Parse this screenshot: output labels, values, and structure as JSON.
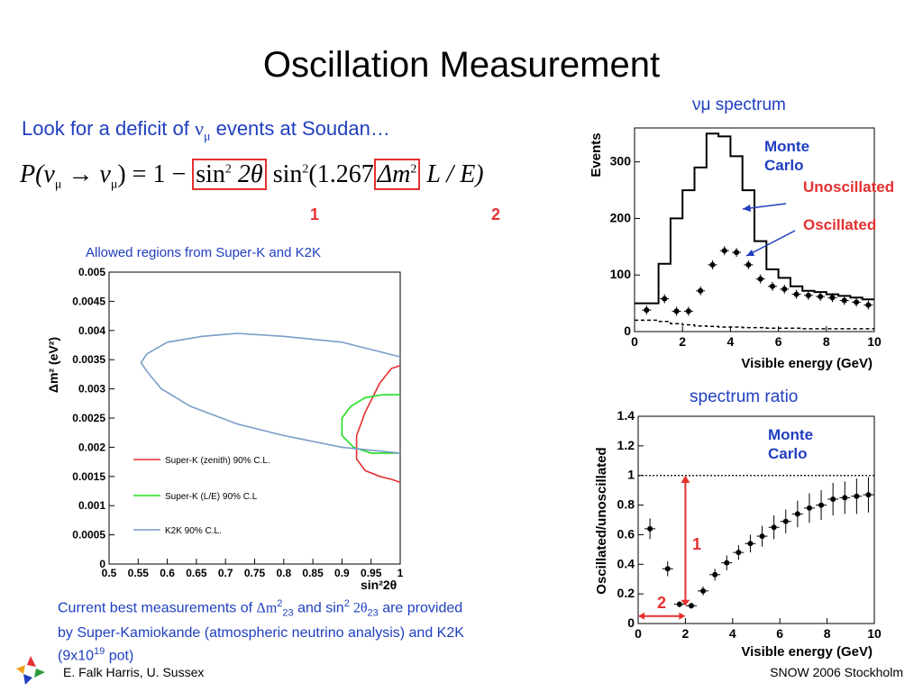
{
  "title": "Oscillation Measurement",
  "intro": {
    "prefix": "Look for a deficit of ",
    "nu": "ν",
    "mu": "μ",
    "suffix": " events at Soudan…"
  },
  "formula": {
    "lhs": "P(ν",
    "sub1": "μ",
    "arrow": " → ν",
    "sub2": "μ",
    "eq": ") = 1 − ",
    "box1": "sin",
    "box1_sup": "2",
    "box1_rest": " 2θ",
    "mid": " sin",
    "mid_sup": "2",
    "mid_rest": "(1.267",
    "box2": "Δm",
    "box2_sup": "2",
    "tail": " L / E)",
    "mark1": "1",
    "mark2": "2"
  },
  "allowed_caption": "Allowed regions from Super-K and K2K",
  "bottom_text": {
    "l1a": "Current best measurements of ",
    "dm": "Δm",
    "sup2": "2",
    "sub23": "23",
    "l1b": " and sin",
    "sup2b": "2",
    "l1c": " 2θ",
    "sub23b": "23",
    "l1d": " are provided",
    "l2": "by Super-Kamiokande (atmospheric neutrino analysis) and K2K",
    "l3a": "(9x10",
    "sup19": "19",
    "l3b": " pot)"
  },
  "footer": {
    "left": "E. Falk Harris, U. Sussex",
    "right": "SNOW 2006 Stockholm"
  },
  "colors": {
    "accent_blue": "#1f3fbf",
    "red": "#e53030",
    "green": "#22dd22",
    "k2k_blue": "#7a9cc8"
  },
  "chart_data": [
    {
      "type": "line",
      "xlabel": "sin²2θ",
      "ylabel": "Δm² (eV²)",
      "xlim": [
        0.5,
        1.0
      ],
      "ylim": [
        0,
        0.005
      ],
      "xticks": [
        "0.5",
        "0.55",
        "0.6",
        "0.65",
        "0.7",
        "0.75",
        "0.8",
        "0.85",
        "0.9",
        "0.95",
        "1"
      ],
      "yticks": [
        "0",
        "0.0005",
        "0.001",
        "0.0015",
        "0.002",
        "0.0025",
        "0.003",
        "0.0035",
        "0.004",
        "0.0045",
        "0.005"
      ],
      "legend": [
        "Super-K (zenith) 90% C.L.",
        "Super-K (L/E) 90% C.L",
        "K2K 90% C.L."
      ],
      "series": [
        {
          "name": "Super-K (zenith) 90% C.L.",
          "color": "#e53030",
          "x": [
            1.0,
            0.985,
            0.965,
            0.94,
            0.925,
            0.925,
            0.94,
            0.965,
            0.985,
            1.0
          ],
          "y": [
            0.0034,
            0.00335,
            0.0031,
            0.0026,
            0.0022,
            0.0018,
            0.0016,
            0.0015,
            0.00145,
            0.0014
          ]
        },
        {
          "name": "Super-K (L/E) 90% C.L",
          "color": "#22dd22",
          "x": [
            1.0,
            0.97,
            0.94,
            0.915,
            0.9,
            0.9,
            0.92,
            0.95,
            0.98,
            1.0
          ],
          "y": [
            0.0029,
            0.0029,
            0.00285,
            0.0027,
            0.0025,
            0.0022,
            0.002,
            0.0019,
            0.0019,
            0.0019
          ]
        },
        {
          "name": "K2K 90% C.L.",
          "color": "#7a9cc8",
          "x": [
            1.0,
            0.9,
            0.8,
            0.72,
            0.66,
            0.6,
            0.565,
            0.555,
            0.565,
            0.59,
            0.64,
            0.72,
            0.8,
            0.9,
            1.0
          ],
          "y": [
            0.00355,
            0.0038,
            0.0039,
            0.00395,
            0.0039,
            0.0038,
            0.0036,
            0.00345,
            0.0033,
            0.003,
            0.0027,
            0.0024,
            0.0022,
            0.002,
            0.0019
          ]
        }
      ]
    },
    {
      "type": "line",
      "title": "νμ spectrum",
      "xlabel": "Visible energy (GeV)",
      "ylabel": "Events",
      "xlim": [
        0,
        10
      ],
      "ylim": [
        0,
        360
      ],
      "xticks": [
        "0",
        "2",
        "4",
        "6",
        "8",
        "10"
      ],
      "yticks": [
        "0",
        "100",
        "200",
        "300"
      ],
      "series": [
        {
          "name": "Unoscillated",
          "type": "step",
          "x": [
            0,
            0.5,
            1,
            1.5,
            2,
            2.5,
            3,
            3.5,
            4,
            4.5,
            5,
            5.5,
            6,
            6.5,
            7,
            7.5,
            8,
            8.5,
            9,
            9.5,
            10
          ],
          "y": [
            50,
            50,
            120,
            200,
            250,
            290,
            350,
            345,
            310,
            250,
            160,
            110,
            95,
            80,
            72,
            70,
            66,
            63,
            60,
            57,
            55
          ]
        },
        {
          "name": "dashed",
          "type": "step",
          "x": [
            0,
            0.5,
            1,
            1.5,
            2,
            2.5,
            3,
            3.5,
            4,
            4.5,
            5,
            5.5,
            6,
            6.5,
            7,
            7.5,
            8,
            8.5,
            9,
            9.5,
            10
          ],
          "y": [
            20,
            20,
            18,
            14,
            12,
            10,
            9,
            8,
            8,
            7,
            7,
            6,
            6,
            6,
            5,
            5,
            5,
            5,
            5,
            5,
            5
          ]
        },
        {
          "name": "Oscillated",
          "type": "points",
          "x": [
            0.5,
            1.25,
            1.75,
            2.25,
            2.75,
            3.25,
            3.75,
            4.25,
            4.75,
            5.25,
            5.75,
            6.25,
            6.75,
            7.25,
            7.75,
            8.25,
            8.75,
            9.25,
            9.75
          ],
          "y": [
            38,
            58,
            36,
            36,
            72,
            118,
            143,
            140,
            118,
            93,
            80,
            75,
            66,
            64,
            62,
            60,
            55,
            52,
            47
          ]
        }
      ],
      "annotations": [
        "Monte Carlo",
        "Unoscillated",
        "Oscillated"
      ]
    },
    {
      "type": "scatter",
      "title": "spectrum ratio",
      "xlabel": "Visible energy (GeV)",
      "ylabel": "Oscillated/unoscillated",
      "xlim": [
        0,
        10
      ],
      "ylim": [
        0,
        1.4
      ],
      "xticks": [
        "0",
        "2",
        "4",
        "6",
        "8",
        "10"
      ],
      "yticks": [
        "0",
        "0.2",
        "0.4",
        "0.6",
        "0.8",
        "1",
        "1.2",
        "1.4"
      ],
      "series": [
        {
          "name": "ratio",
          "x": [
            0.5,
            1.25,
            1.75,
            2.25,
            2.75,
            3.25,
            3.75,
            4.25,
            4.75,
            5.25,
            5.75,
            6.25,
            6.75,
            7.25,
            7.75,
            8.25,
            8.75,
            9.25,
            9.75
          ],
          "y": [
            0.64,
            0.37,
            0.13,
            0.12,
            0.22,
            0.33,
            0.41,
            0.48,
            0.54,
            0.59,
            0.65,
            0.69,
            0.74,
            0.78,
            0.8,
            0.84,
            0.85,
            0.86,
            0.87
          ],
          "err": [
            0.07,
            0.05,
            0.02,
            0.02,
            0.03,
            0.04,
            0.05,
            0.05,
            0.06,
            0.07,
            0.08,
            0.08,
            0.09,
            0.1,
            0.1,
            0.11,
            0.11,
            0.12,
            0.12
          ]
        }
      ],
      "annotations": [
        "Monte Carlo",
        "1",
        "2"
      ]
    }
  ]
}
